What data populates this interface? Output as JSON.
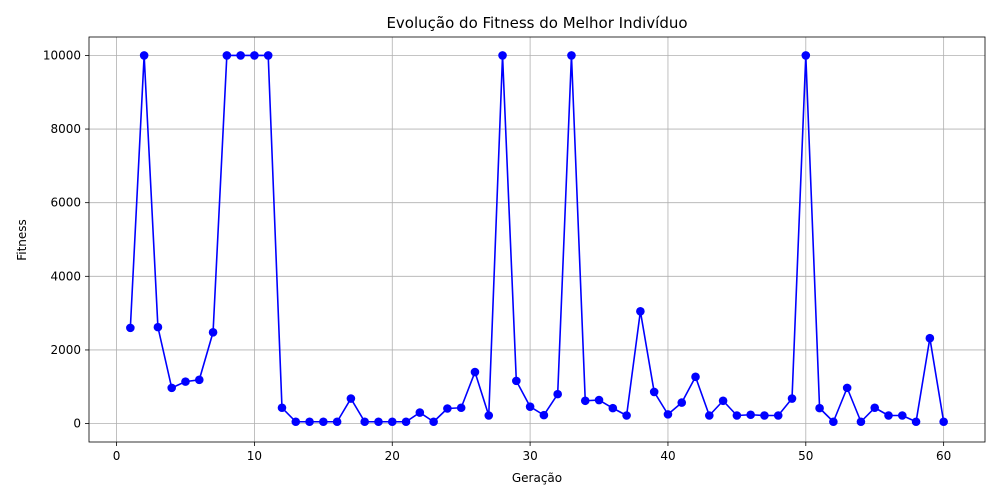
{
  "chart_data": {
    "type": "line",
    "title": "Evolução do Fitness do Melhor Indivíduo",
    "xlabel": "Geração",
    "ylabel": "Fitness",
    "xlim": [
      -2,
      63
    ],
    "ylim": [
      -500,
      10500
    ],
    "xticks": [
      0,
      10,
      20,
      30,
      40,
      50,
      60
    ],
    "yticks": [
      0,
      2000,
      4000,
      6000,
      8000,
      10000
    ],
    "grid": true,
    "marker": "circle",
    "color": "#0000ff",
    "series": [
      {
        "x": [
          1,
          2,
          3,
          4,
          5,
          6,
          7,
          8,
          9,
          10,
          11,
          12,
          13,
          14,
          15,
          16,
          17,
          18,
          19,
          20,
          21,
          22,
          23,
          24,
          25,
          26,
          27,
          28,
          29,
          30,
          31,
          32,
          33,
          34,
          35,
          36,
          37,
          38,
          39,
          40,
          41,
          42,
          43,
          44,
          45,
          46,
          47,
          48,
          49,
          50,
          51,
          52,
          53,
          54,
          55,
          56,
          57,
          58,
          59,
          60
        ],
        "values": [
          2600,
          10000,
          2620,
          970,
          1140,
          1190,
          2480,
          10000,
          10000,
          10000,
          10000,
          430,
          50,
          50,
          50,
          50,
          680,
          50,
          50,
          50,
          50,
          300,
          50,
          410,
          430,
          1400,
          220,
          10000,
          1160,
          460,
          230,
          800,
          10000,
          620,
          640,
          420,
          220,
          3050,
          860,
          250,
          570,
          1270,
          220,
          620,
          220,
          240,
          220,
          220,
          680,
          10000,
          420,
          50,
          970,
          50,
          430,
          220,
          220,
          50,
          2320,
          50
        ]
      }
    ]
  }
}
